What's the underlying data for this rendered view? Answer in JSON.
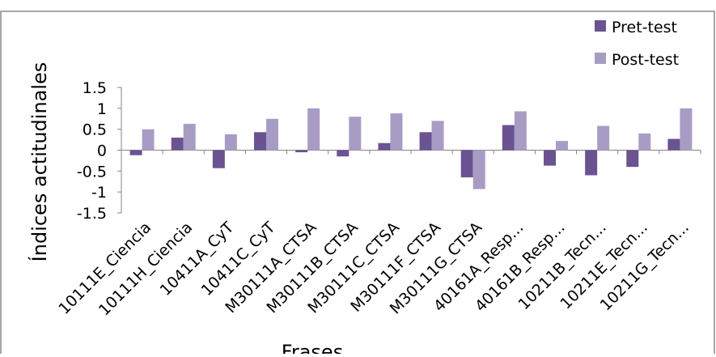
{
  "chart_data": {
    "type": "bar",
    "title": "",
    "xlabel": "Frases",
    "ylabel": "Índices actitudinales",
    "ylim": [
      -1.5,
      1.5
    ],
    "yticks": [
      "1.5",
      "1",
      "0.5",
      "0",
      "-0.5",
      "-1",
      "-1.5"
    ],
    "ytick_values": [
      1.5,
      1,
      0.5,
      0,
      -0.5,
      -1,
      -1.5
    ],
    "grid": false,
    "legend_position": "top-right",
    "categories": [
      "10111E_Ciencia",
      "10111H_Ciencia",
      "10411A_CyT",
      "10411C_CyT",
      "M30111A_CTSA",
      "M30111B_CTSA",
      "M30111C_CTSA",
      "M30111F_CTSA",
      "M30111G_CTSA",
      "40161A_Resp...",
      "40161B_Resp...",
      "10211B_Tecn...",
      "10211E_Tecn...",
      "10211G_Tecn..."
    ],
    "series": [
      {
        "name": "Pret-test",
        "color": "#6b5391",
        "values": [
          -0.12,
          0.3,
          -0.43,
          0.43,
          -0.05,
          -0.15,
          0.17,
          0.43,
          -0.65,
          0.6,
          -0.37,
          -0.6,
          -0.4,
          0.27
        ]
      },
      {
        "name": "Post-test",
        "color": "#a99cc4",
        "values": [
          0.5,
          0.63,
          0.38,
          0.75,
          1.0,
          0.8,
          0.88,
          0.7,
          -0.93,
          0.93,
          0.22,
          0.58,
          0.4,
          1.0
        ]
      }
    ]
  }
}
